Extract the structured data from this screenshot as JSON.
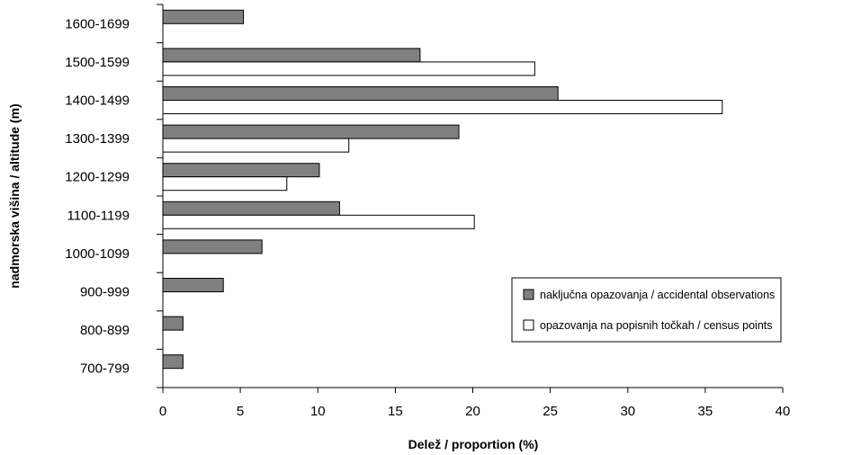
{
  "chart_data": {
    "type": "bar",
    "orientation": "horizontal",
    "categories": [
      "1600-1699",
      "1500-1599",
      "1400-1499",
      "1300-1399",
      "1200-1299",
      "1100-1199",
      "1000-1099",
      "900-999",
      "800-899",
      "700-799"
    ],
    "series": [
      {
        "name": "naključna opazovanja / accidental observations",
        "values": [
          5.2,
          16.6,
          25.5,
          19.1,
          10.1,
          11.4,
          6.4,
          3.9,
          1.3,
          1.3
        ],
        "fill": "#808080"
      },
      {
        "name": "opazovanja na popisnih točkah / census points",
        "values": [
          0,
          24.0,
          36.1,
          12.0,
          8.0,
          20.1,
          0,
          0,
          0,
          0
        ],
        "fill": "#ffffff"
      }
    ],
    "title": "",
    "xlabel": "Delež / proportion (%)",
    "ylabel": "nadmorska višina / altitude (m)",
    "xlim": [
      0,
      40
    ],
    "xticks": [
      0,
      5,
      10,
      15,
      20,
      25,
      30,
      35,
      40
    ],
    "grid": false,
    "legend_position": "right",
    "stroke_color": "#000000"
  }
}
